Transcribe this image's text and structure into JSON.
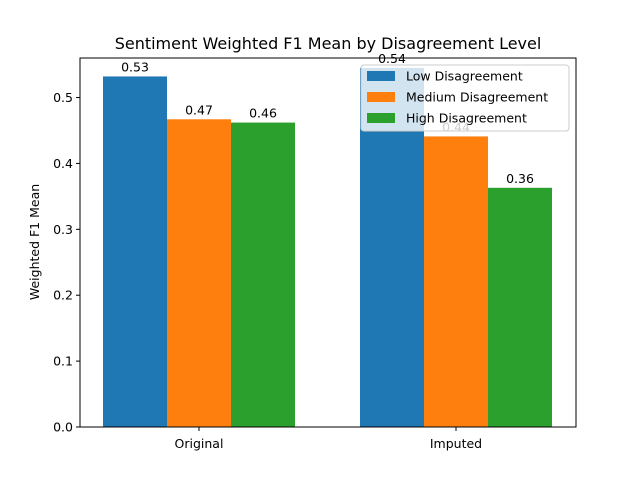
{
  "chart_data": {
    "type": "bar",
    "title": "Sentiment Weighted F1 Mean by Disagreement Level",
    "xlabel": "",
    "ylabel": "Weighted F1 Mean",
    "categories": [
      "Original",
      "Imputed"
    ],
    "series": [
      {
        "name": "Low Disagreement",
        "color": "#1f77b4",
        "values": [
          0.532,
          0.545
        ],
        "labels": [
          "0.53",
          "0.54"
        ]
      },
      {
        "name": "Medium Disagreement",
        "color": "#ff7f0e",
        "values": [
          0.467,
          0.441
        ],
        "labels": [
          "0.47",
          "0.44"
        ]
      },
      {
        "name": "High Disagreement",
        "color": "#2ca02c",
        "values": [
          0.462,
          0.363
        ],
        "labels": [
          "0.46",
          "0.36"
        ]
      }
    ],
    "ylim": [
      0,
      0.56
    ],
    "yticks": [
      {
        "value": 0.0,
        "label": "0.0"
      },
      {
        "value": 0.1,
        "label": "0.1"
      },
      {
        "value": 0.2,
        "label": "0.2"
      },
      {
        "value": 0.3,
        "label": "0.3"
      },
      {
        "value": 0.4,
        "label": "0.4"
      },
      {
        "value": 0.5,
        "label": "0.5"
      }
    ],
    "grid": false,
    "legend_position": "top-right"
  }
}
